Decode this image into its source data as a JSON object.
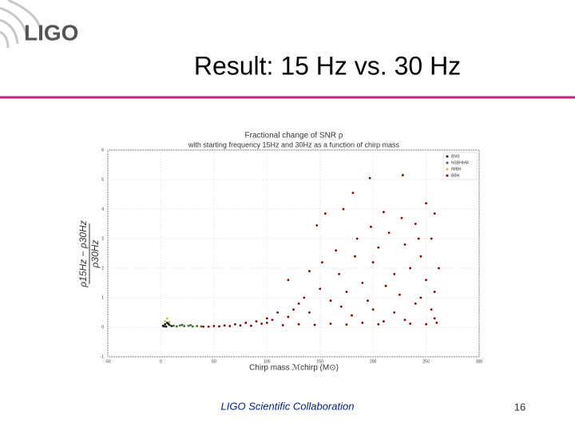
{
  "header": {
    "logo": "LIGO",
    "title": "Result: 15 Hz vs. 30 Hz"
  },
  "chart_data": {
    "type": "scatter",
    "title": "Fractional change of SNR ρ",
    "subtitle": "with starting frequency 15Hz and 30Hz as a function of chirp mass",
    "x_label": "Chirp mass ℳchirp (M⊙)",
    "y_label_numerator": "ρ15Hz − ρ30Hz",
    "y_label_denominator": "ρ30Hz",
    "xlim": [
      -50,
      300
    ],
    "xticks": [
      -50,
      0,
      50,
      100,
      150,
      200,
      250,
      300
    ],
    "ylim": [
      -1,
      6
    ],
    "yticks": [
      -1,
      0,
      1,
      2,
      3,
      4,
      5,
      6
    ],
    "grid": true,
    "legend": "upper right",
    "series": [
      {
        "name": "BNS",
        "color": "#1a1a1a",
        "x": [
          2,
          4,
          6,
          8,
          10,
          5,
          3,
          7
        ],
        "values": [
          0.05,
          0.1,
          0.15,
          0.08,
          0.04,
          0.02,
          0.03,
          0.12
        ]
      },
      {
        "name": "NSBHHM",
        "color": "#3a6b2a",
        "x": [
          12,
          15,
          18,
          22,
          26,
          30,
          34,
          38,
          20,
          28
        ],
        "values": [
          0.05,
          0.03,
          0.06,
          0.04,
          0.05,
          0.03,
          0.04,
          0.03,
          0.08,
          0.07
        ]
      },
      {
        "name": "IMBH",
        "color": "#c8c040",
        "x": [
          4,
          6,
          8
        ],
        "values": [
          0.2,
          0.3,
          0.18
        ]
      },
      {
        "name": "BBH",
        "color": "#8b0000",
        "x": [
          197,
          228,
          181,
          172,
          155,
          250,
          258,
          210,
          147,
          120,
          140,
          165,
          185,
          200,
          215,
          230,
          240,
          255,
          245,
          220,
          190,
          175,
          160,
          150,
          130,
          110,
          100,
          90,
          80,
          70,
          60,
          50,
          205,
          235,
          250,
          258,
          225,
          195,
          170,
          140,
          120,
          100,
          180,
          200,
          220,
          240,
          255,
          258,
          230,
          210,
          190,
          160,
          130,
          250,
          85,
          115,
          145,
          175,
          205,
          235,
          260,
          245,
          212,
          168,
          152,
          183,
          262,
          243,
          227,
          198,
          135,
          125,
          105,
          95,
          75,
          65,
          55,
          45,
          40
        ],
        "values": [
          5.05,
          5.15,
          4.55,
          4.0,
          3.85,
          4.2,
          3.85,
          3.9,
          3.45,
          1.6,
          1.9,
          2.6,
          3.0,
          2.2,
          3.2,
          2.8,
          3.5,
          3.0,
          2.4,
          1.8,
          1.5,
          1.2,
          0.9,
          1.3,
          0.8,
          0.5,
          0.3,
          0.2,
          0.15,
          0.1,
          0.06,
          0.04,
          2.7,
          2.0,
          1.6,
          1.2,
          1.1,
          0.9,
          0.7,
          0.5,
          0.35,
          0.15,
          0.4,
          0.6,
          0.5,
          0.8,
          0.6,
          0.3,
          0.25,
          0.2,
          0.15,
          0.12,
          0.1,
          0.1,
          0.05,
          0.07,
          0.08,
          0.09,
          0.1,
          0.12,
          0.15,
          1.0,
          1.4,
          1.8,
          2.2,
          2.4,
          2.0,
          3.0,
          3.7,
          3.4,
          1.0,
          0.6,
          0.25,
          0.12,
          0.06,
          0.04,
          0.03,
          0.02,
          0.02
        ]
      }
    ]
  },
  "footer": {
    "collaboration": "LIGO Scientific Collaboration",
    "page": "16"
  }
}
